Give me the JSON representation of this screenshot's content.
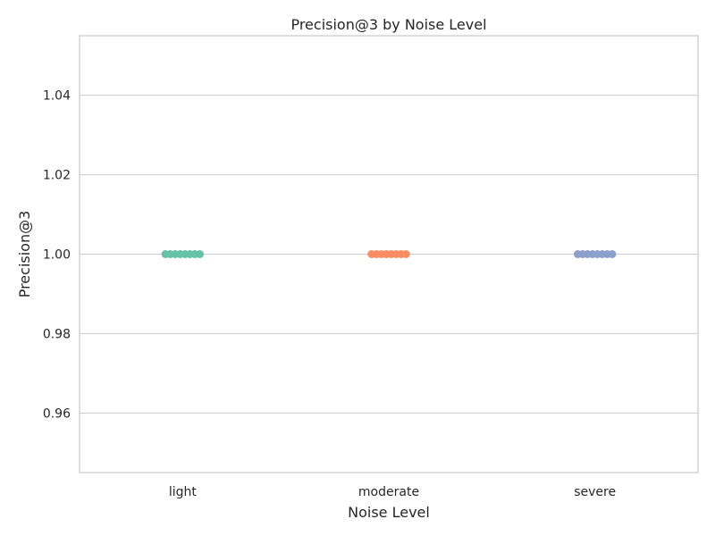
{
  "chart_data": {
    "type": "scatter",
    "title": "Precision@3 by Noise Level",
    "xlabel": "Noise Level",
    "ylabel": "Precision@3",
    "categories": [
      "light",
      "moderate",
      "severe"
    ],
    "colors": [
      "#66c2a5",
      "#fc8d62",
      "#8da0cb"
    ],
    "values": [
      1.0,
      1.0,
      1.0
    ],
    "ylim": [
      0.945,
      1.055
    ],
    "yticks": [
      0.96,
      0.98,
      1.0,
      1.02,
      1.04
    ],
    "ytick_labels": [
      "0.96",
      "0.98",
      "1.00",
      "1.02",
      "1.04"
    ],
    "grid": true
  }
}
